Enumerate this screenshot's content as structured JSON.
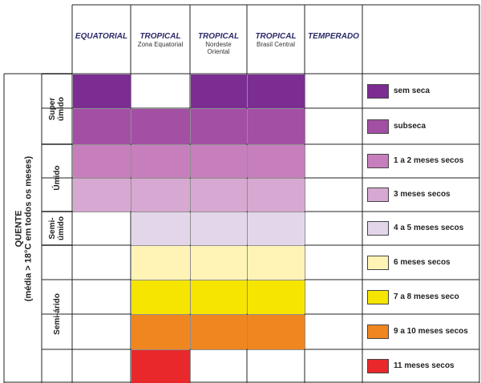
{
  "columns": [
    {
      "id": "equatorial",
      "title": "EQUATORIAL",
      "subtitle": ""
    },
    {
      "id": "tropical-ze",
      "title": "TROPICAL",
      "subtitle": "Zona Equatorial"
    },
    {
      "id": "tropical-nd",
      "title": "TROPICAL",
      "subtitle": "Nordeste Oriental"
    },
    {
      "id": "tropical-bc",
      "title": "TROPICAL",
      "subtitle": "Brasil Central"
    },
    {
      "id": "temperado",
      "title": "TEMPERADO",
      "subtitle": ""
    }
  ],
  "row_axis_title": "QUENTE",
  "row_axis_subtitle": "(média > 18°C em todos os meses)",
  "row_groups": [
    {
      "label_lines": [
        "Super",
        "úmido"
      ],
      "rows": [
        0,
        1
      ]
    },
    {
      "label_lines": [
        "Úmido"
      ],
      "rows": [
        2,
        3
      ]
    },
    {
      "label_lines": [
        "Semi-",
        "úmido"
      ],
      "rows": [
        4
      ]
    },
    {
      "label_lines": [
        "Semi-árido"
      ],
      "rows": [
        5,
        6,
        7,
        8
      ]
    }
  ],
  "legend": [
    {
      "label": "sem seca",
      "color": "#7b2d92"
    },
    {
      "label": "subseca",
      "color": "#a24fa4"
    },
    {
      "label": "1 a 2 meses secos",
      "color": "#c67fbc"
    },
    {
      "label": "3 meses secos",
      "color": "#d7a8d1"
    },
    {
      "label": "4 a 5 meses secos",
      "color": "#e3d6ea"
    },
    {
      "label": "6 meses secos",
      "color": "#fff4b5"
    },
    {
      "label": "7 a 8 meses seco",
      "color": "#f5e500"
    },
    {
      "label": "9 a 10 meses secos",
      "color": "#f0861f"
    },
    {
      "label": "11 meses secos",
      "color": "#e8282b"
    }
  ],
  "grid": [
    [
      0,
      null,
      0,
      0,
      null
    ],
    [
      1,
      1,
      1,
      1,
      null
    ],
    [
      2,
      2,
      2,
      2,
      null
    ],
    [
      3,
      3,
      3,
      3,
      null
    ],
    [
      null,
      4,
      4,
      4,
      null
    ],
    [
      null,
      5,
      5,
      5,
      null
    ],
    [
      null,
      6,
      6,
      6,
      null
    ],
    [
      null,
      7,
      7,
      7,
      null
    ],
    [
      null,
      8,
      null,
      null,
      null
    ]
  ]
}
